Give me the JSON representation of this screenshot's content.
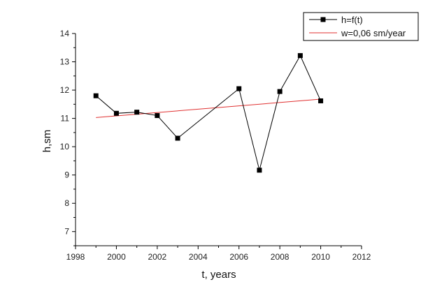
{
  "chart_data": {
    "type": "line",
    "xlabel": "t, years",
    "ylabel": "h,sm",
    "xlim": [
      1998,
      2012
    ],
    "ylim": [
      6.5,
      14
    ],
    "x_ticks": [
      1998,
      2000,
      2002,
      2004,
      2006,
      2008,
      2010,
      2012
    ],
    "y_ticks": [
      7,
      8,
      9,
      10,
      11,
      12,
      13,
      14
    ],
    "grid": false,
    "legend_position": "top-right",
    "series": [
      {
        "name": "h=f(t)",
        "style": "line-with-square-markers",
        "color": "#000000",
        "x": [
          1999,
          2000,
          2001,
          2002,
          2003,
          2006,
          2007,
          2008,
          2009,
          2010
        ],
        "y": [
          11.8,
          11.18,
          11.22,
          11.1,
          10.3,
          12.05,
          9.17,
          11.95,
          13.22,
          11.62
        ]
      },
      {
        "name": "w=0,06 sm/year",
        "style": "line",
        "color": "#e03030",
        "x": [
          1999,
          2010
        ],
        "y": [
          11.03,
          11.68
        ]
      }
    ]
  }
}
